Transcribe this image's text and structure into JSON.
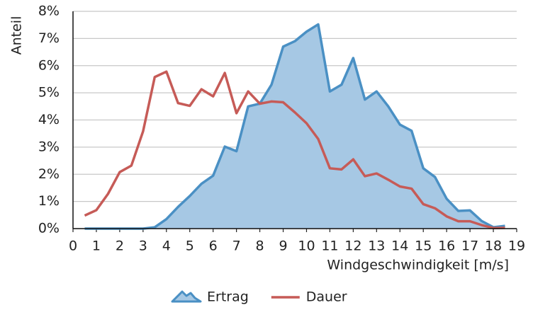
{
  "chart_data": {
    "type": "line",
    "x_label": "Windgeschwindigkeit [m/s]",
    "y_label": "Anteil",
    "x": [
      0.5,
      1,
      1.5,
      2,
      2.5,
      3,
      3.5,
      4,
      4.5,
      5,
      5.5,
      6,
      6.5,
      7,
      7.5,
      8,
      8.5,
      9,
      9.5,
      10,
      10.5,
      11,
      11.5,
      12,
      12.5,
      13,
      13.5,
      14,
      14.5,
      15,
      15.5,
      16,
      16.5,
      17,
      17.5,
      18,
      18.5
    ],
    "series": [
      {
        "name": "Ertrag",
        "color": "#4a90c4",
        "fill_color": "#a6c8e4",
        "area": true,
        "values": [
          0,
          0,
          0,
          0,
          0,
          0,
          0.05,
          0.35,
          0.8,
          1.2,
          1.65,
          1.95,
          3.02,
          2.85,
          4.5,
          4.6,
          5.3,
          6.7,
          6.9,
          7.25,
          7.52,
          5.05,
          5.3,
          6.28,
          4.75,
          5.05,
          4.5,
          3.83,
          3.6,
          2.22,
          1.9,
          1.1,
          0.65,
          0.67,
          0.28,
          0.05,
          0.1
        ]
      },
      {
        "name": "Dauer",
        "color": "#c65b57",
        "area": false,
        "values": [
          0.48,
          0.68,
          1.28,
          2.08,
          2.32,
          3.58,
          5.58,
          5.78,
          4.62,
          4.52,
          5.13,
          4.87,
          5.73,
          4.25,
          5.05,
          4.6,
          4.68,
          4.65,
          4.28,
          3.88,
          3.3,
          2.22,
          2.18,
          2.55,
          1.93,
          2.03,
          1.8,
          1.55,
          1.47,
          0.9,
          0.75,
          0.45,
          0.27,
          0.27,
          0.13,
          0.02,
          0.03
        ]
      }
    ],
    "xlim": [
      0,
      19
    ],
    "xticks": [
      0,
      1,
      2,
      3,
      4,
      5,
      6,
      7,
      8,
      9,
      10,
      11,
      12,
      13,
      14,
      15,
      16,
      17,
      18,
      19
    ],
    "ylim": [
      0,
      8
    ],
    "yticks": [
      {
        "value": 0,
        "label": "0%"
      },
      {
        "value": 1,
        "label": "1%"
      },
      {
        "value": 2,
        "label": "2%"
      },
      {
        "value": 3,
        "label": "3%"
      },
      {
        "value": 4,
        "label": "4%"
      },
      {
        "value": 5,
        "label": "5%"
      },
      {
        "value": 6,
        "label": "6%"
      },
      {
        "value": 7,
        "label": "7%"
      },
      {
        "value": 8,
        "label": "8%"
      }
    ],
    "grid": true,
    "legend": "bottom"
  }
}
